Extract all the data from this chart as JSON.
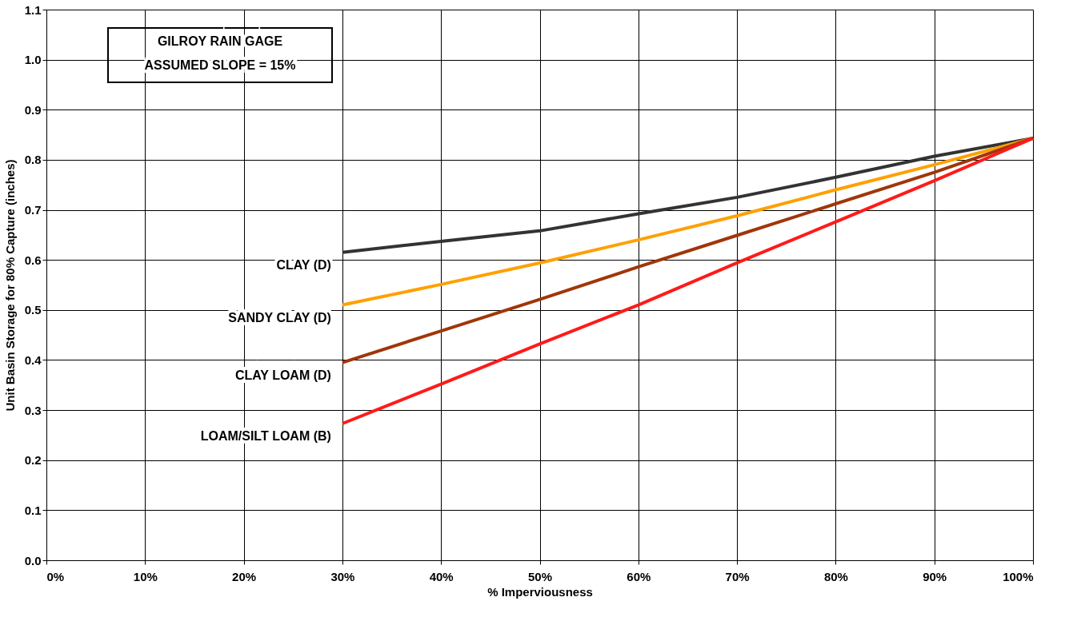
{
  "chart_data": {
    "type": "line",
    "xlabel": "% Imperviousness",
    "ylabel": "Unit Basin Storage for 80% Capture (inches)",
    "annotations": [
      "GILROY RAIN GAGE",
      "ASSUMED SLOPE = 15%"
    ],
    "x": [
      30,
      40,
      50,
      60,
      70,
      80,
      90,
      100
    ],
    "series": [
      {
        "name": "CLAY (D)",
        "color": "#333333",
        "values": [
          0.615,
          0.637,
          0.658,
          0.692,
          0.725,
          0.765,
          0.807,
          0.843
        ]
      },
      {
        "name": "SANDY CLAY (D)",
        "color": "#ffa000",
        "values": [
          0.51,
          0.551,
          0.594,
          0.64,
          0.688,
          0.74,
          0.79,
          0.843
        ]
      },
      {
        "name": "CLAY LOAM (D)",
        "color": "#a0360a",
        "values": [
          0.395,
          0.458,
          0.521,
          0.586,
          0.649,
          0.712,
          0.775,
          0.843
        ]
      },
      {
        "name": "LOAM/SILT LOAM (B)",
        "color": "#ff1a1a",
        "values": [
          0.273,
          0.352,
          0.432,
          0.51,
          0.594,
          0.676,
          0.758,
          0.843
        ]
      }
    ],
    "xlim": [
      0,
      100
    ],
    "xticks": [
      {
        "value": 0,
        "label": "0%"
      },
      {
        "value": 10,
        "label": "10%"
      },
      {
        "value": 20,
        "label": "20%"
      },
      {
        "value": 30,
        "label": "30%"
      },
      {
        "value": 40,
        "label": "40%"
      },
      {
        "value": 50,
        "label": "50%"
      },
      {
        "value": 60,
        "label": "60%"
      },
      {
        "value": 70,
        "label": "70%"
      },
      {
        "value": 80,
        "label": "80%"
      },
      {
        "value": 90,
        "label": "90%"
      },
      {
        "value": 100,
        "label": "100%"
      }
    ],
    "ylim": [
      0,
      1.1
    ],
    "yticks": [
      {
        "value": 0,
        "label": "0.0"
      },
      {
        "value": 0.1,
        "label": "0.1"
      },
      {
        "value": 0.2,
        "label": "0.2"
      },
      {
        "value": 0.3,
        "label": "0.3"
      },
      {
        "value": 0.4,
        "label": "0.4"
      },
      {
        "value": 0.5,
        "label": "0.5"
      },
      {
        "value": 0.6,
        "label": "0.6"
      },
      {
        "value": 0.7,
        "label": "0.7"
      },
      {
        "value": 0.8,
        "label": "0.8"
      },
      {
        "value": 0.9,
        "label": "0.9"
      },
      {
        "value": 1.0,
        "label": "1.0"
      },
      {
        "value": 1.1,
        "label": "1.1"
      }
    ],
    "grid": true,
    "legend": false,
    "line_style": "solid",
    "marker": "none"
  }
}
